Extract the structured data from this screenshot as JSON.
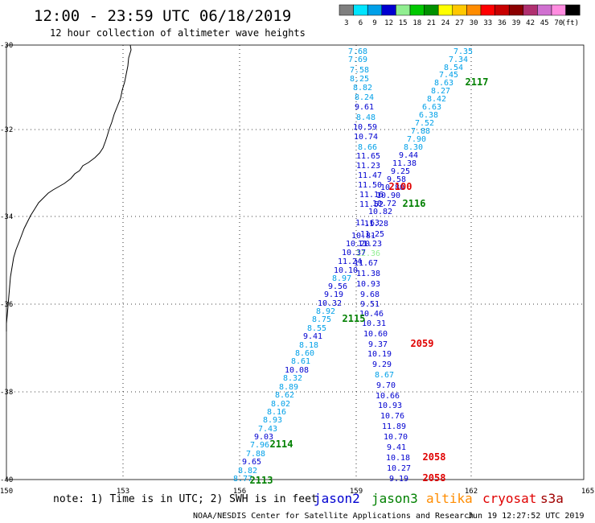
{
  "header": {
    "title": "12:00 - 23:59 UTC 06/18/2019",
    "subtitle": "12 hour collection of altimeter wave heights"
  },
  "legend": {
    "unit": "(ft)",
    "bins": [
      {
        "label": "3",
        "color": "#7f7f7f"
      },
      {
        "label": "6",
        "color": "#00e5ff"
      },
      {
        "label": "9",
        "color": "#00a0e8"
      },
      {
        "label": "12",
        "color": "#0000d0"
      },
      {
        "label": "15",
        "color": "#90ee90"
      },
      {
        "label": "18",
        "color": "#00c800"
      },
      {
        "label": "21",
        "color": "#009000"
      },
      {
        "label": "24",
        "color": "#ffff00"
      },
      {
        "label": "27",
        "color": "#ffc800"
      },
      {
        "label": "30",
        "color": "#ff8c00"
      },
      {
        "label": "33",
        "color": "#ff0000"
      },
      {
        "label": "36",
        "color": "#c80000"
      },
      {
        "label": "39",
        "color": "#8b0000"
      },
      {
        "label": "42",
        "color": "#b03070"
      },
      {
        "label": "45",
        "color": "#d070d0"
      },
      {
        "label": "70",
        "color": "#ff8ce0"
      },
      {
        "label": "",
        "color": "#000000"
      }
    ]
  },
  "axes": {
    "lon_ticks": [
      "150",
      "153",
      "156",
      "159",
      "162",
      "165"
    ],
    "lat_ticks": [
      "-30",
      "-32",
      "-34",
      "-36",
      "-38",
      "-40"
    ]
  },
  "tracks": [
    {
      "id": "a",
      "points": [
        [
          "7.35",
          576,
          63
        ],
        [
          "7.34",
          570,
          73
        ],
        [
          "8.54",
          564,
          83
        ],
        [
          "7.45",
          558,
          92
        ],
        [
          "8.63",
          552,
          102
        ],
        [
          "8.27",
          548,
          112
        ],
        [
          "8.42",
          543,
          122
        ],
        [
          "6.63",
          537,
          132
        ],
        [
          "6.38",
          533,
          142
        ],
        [
          "7.52",
          528,
          152
        ],
        [
          "7.88",
          523,
          162
        ],
        [
          "7.90",
          518,
          172
        ],
        [
          "8.30",
          514,
          182
        ],
        [
          "9.44",
          508,
          192
        ],
        [
          "11.38",
          503,
          202
        ],
        [
          "9.25",
          498,
          212
        ],
        [
          "9.58",
          493,
          222
        ],
        [
          "10.80",
          488,
          232
        ],
        [
          "10.90",
          483,
          242
        ],
        [
          "10.72",
          478,
          252
        ],
        [
          "10.82",
          473,
          262
        ],
        [
          "11.28",
          468,
          277
        ],
        [
          "11.25",
          463,
          290
        ],
        [
          "11.23",
          460,
          302
        ],
        [
          "12.36",
          458,
          314
        ],
        [
          "11.67",
          455,
          326
        ],
        [
          "11.38",
          458,
          339
        ],
        [
          "10.93",
          458,
          352
        ],
        [
          "9.68",
          460,
          365
        ],
        [
          "9.51",
          460,
          377
        ],
        [
          "10.46",
          462,
          389
        ],
        [
          "10.31",
          465,
          401
        ],
        [
          "10.60",
          467,
          414
        ],
        [
          "9.37",
          470,
          427
        ],
        [
          "10.19",
          472,
          439
        ],
        [
          "9.29",
          475,
          452
        ],
        [
          "8.67",
          478,
          465
        ],
        [
          "9.70",
          480,
          478
        ],
        [
          "10.66",
          482,
          491
        ],
        [
          "10.93",
          485,
          503
        ],
        [
          "10.76",
          488,
          516
        ],
        [
          "11.89",
          490,
          529
        ],
        [
          "10.70",
          492,
          542
        ],
        [
          "9.41",
          493,
          555
        ],
        [
          "10.18",
          495,
          568
        ],
        [
          "10.27",
          496,
          581
        ],
        [
          "9.19",
          496,
          594
        ]
      ]
    },
    {
      "id": "b",
      "points": [
        [
          "7.68",
          445,
          63
        ],
        [
          "7.69",
          445,
          73
        ],
        [
          "7.58",
          447,
          86
        ],
        [
          "8.25",
          447,
          97
        ],
        [
          "8.82",
          451,
          108
        ],
        [
          "8.24",
          453,
          120
        ],
        [
          "9.61",
          453,
          132
        ],
        [
          "8.48",
          455,
          145
        ],
        [
          "10.59",
          454,
          157
        ],
        [
          "10.74",
          455,
          169
        ],
        [
          "8.66",
          457,
          182
        ],
        [
          "11.65",
          458,
          193
        ],
        [
          "11.23",
          458,
          205
        ],
        [
          "11.47",
          460,
          217
        ],
        [
          "11.50",
          460,
          229
        ],
        [
          "11.16",
          462,
          241
        ],
        [
          "11.52",
          462,
          253
        ],
        [
          "11.63",
          457,
          276
        ],
        [
          "10.81",
          452,
          292
        ],
        [
          "10.20",
          445,
          302
        ],
        [
          "10.37",
          440,
          313
        ],
        [
          "11.24",
          435,
          324
        ],
        [
          "10.10",
          430,
          335
        ],
        [
          "8.97",
          425,
          345
        ],
        [
          "9.56",
          420,
          355
        ],
        [
          "9.19",
          415,
          365
        ],
        [
          "10.32",
          410,
          376
        ],
        [
          "8.92",
          405,
          386
        ],
        [
          "8.75",
          400,
          396
        ],
        [
          "8.55",
          394,
          407
        ],
        [
          "9.41",
          389,
          417
        ],
        [
          "8.18",
          384,
          428
        ],
        [
          "8.60",
          379,
          438
        ],
        [
          "8.61",
          374,
          448
        ],
        [
          "10.08",
          369,
          459
        ],
        [
          "8.32",
          364,
          469
        ],
        [
          "8.89",
          359,
          480
        ],
        [
          "8.62",
          354,
          490
        ],
        [
          "8.02",
          349,
          501
        ],
        [
          "8.16",
          344,
          511
        ],
        [
          "8.93",
          339,
          521
        ],
        [
          "7.43",
          333,
          532
        ],
        [
          "9.03",
          328,
          542
        ],
        [
          "7.96",
          323,
          552
        ],
        [
          "7.88",
          318,
          563
        ],
        [
          "9.65",
          313,
          573
        ],
        [
          "8.82",
          308,
          584
        ],
        [
          "8.77",
          302,
          594
        ]
      ]
    }
  ],
  "pass_labels": [
    {
      "text": "2117",
      "color": "#008000",
      "lon": 593,
      "lat": 102
    },
    {
      "text": "2100",
      "color": "#e00000",
      "lon": 498,
      "lat": 232
    },
    {
      "text": "2116",
      "color": "#008000",
      "lon": 515,
      "lat": 253
    },
    {
      "text": "2115",
      "color": "#008000",
      "lon": 440,
      "lat": 396
    },
    {
      "text": "2059",
      "color": "#e00000",
      "lon": 525,
      "lat": 427
    },
    {
      "text": "2114",
      "color": "#008000",
      "lon": 350,
      "lat": 552
    },
    {
      "text": "2058",
      "color": "#e00000",
      "lon": 540,
      "lat": 568
    },
    {
      "text": "2113",
      "color": "#008000",
      "lon": 325,
      "lat": 597
    },
    {
      "text": "2058",
      "color": "#e00000",
      "lon": 540,
      "lat": 594
    }
  ],
  "footer": {
    "note": "note: 1) Time is in UTC; 2) SWH is in feet",
    "satellites": [
      {
        "name": "jason2",
        "color": "#0000d0"
      },
      {
        "name": "jason3",
        "color": "#008000"
      },
      {
        "name": "altika",
        "color": "#ff8c00"
      },
      {
        "name": "cryosat",
        "color": "#e00000"
      },
      {
        "name": "s3a",
        "color": "#a00000"
      }
    ],
    "credit": "NOAA/NESDIS Center for Satellite Applications and Research",
    "timestamp": "Jun 19 12:27:52 UTC 2019"
  }
}
